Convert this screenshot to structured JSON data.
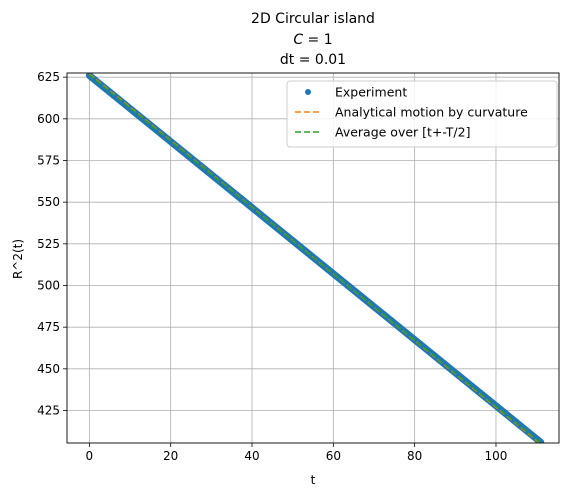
{
  "chart_data": {
    "type": "line",
    "title_lines": [
      "2D Circular island",
      "C = 1",
      "dt = 0.01"
    ],
    "title_line2": {
      "italic": "C",
      "rest": " = 1"
    },
    "xlabel": "t",
    "ylabel": "R^2(t)",
    "xlim": [
      -5.5,
      115.5
    ],
    "ylim": [
      405.5,
      627.5
    ],
    "xticks": [
      0,
      20,
      40,
      60,
      80,
      100
    ],
    "xtick_labels": [
      "0",
      "20",
      "40",
      "60",
      "80",
      "100"
    ],
    "yticks": [
      425,
      450,
      475,
      500,
      525,
      550,
      575,
      600,
      625
    ],
    "ytick_labels": [
      "425",
      "450",
      "475",
      "500",
      "525",
      "550",
      "575",
      "600",
      "625"
    ],
    "grid": true,
    "legend_position": "upper-right",
    "series": [
      {
        "name": "Experiment",
        "style": "points",
        "color": "#1f77b4",
        "x": [
          0,
          111
        ],
        "y": [
          626,
          406
        ]
      },
      {
        "name": "Analytical motion by curvature",
        "style": "dashed",
        "color": "#ff7f0e",
        "x": [
          0,
          111
        ],
        "y": [
          627,
          405
        ]
      },
      {
        "name": "Average over [t+-T/2]",
        "style": "dashed",
        "color": "#2ca02c",
        "x": [
          0,
          111
        ],
        "y": [
          626.5,
          405.5
        ]
      }
    ]
  }
}
